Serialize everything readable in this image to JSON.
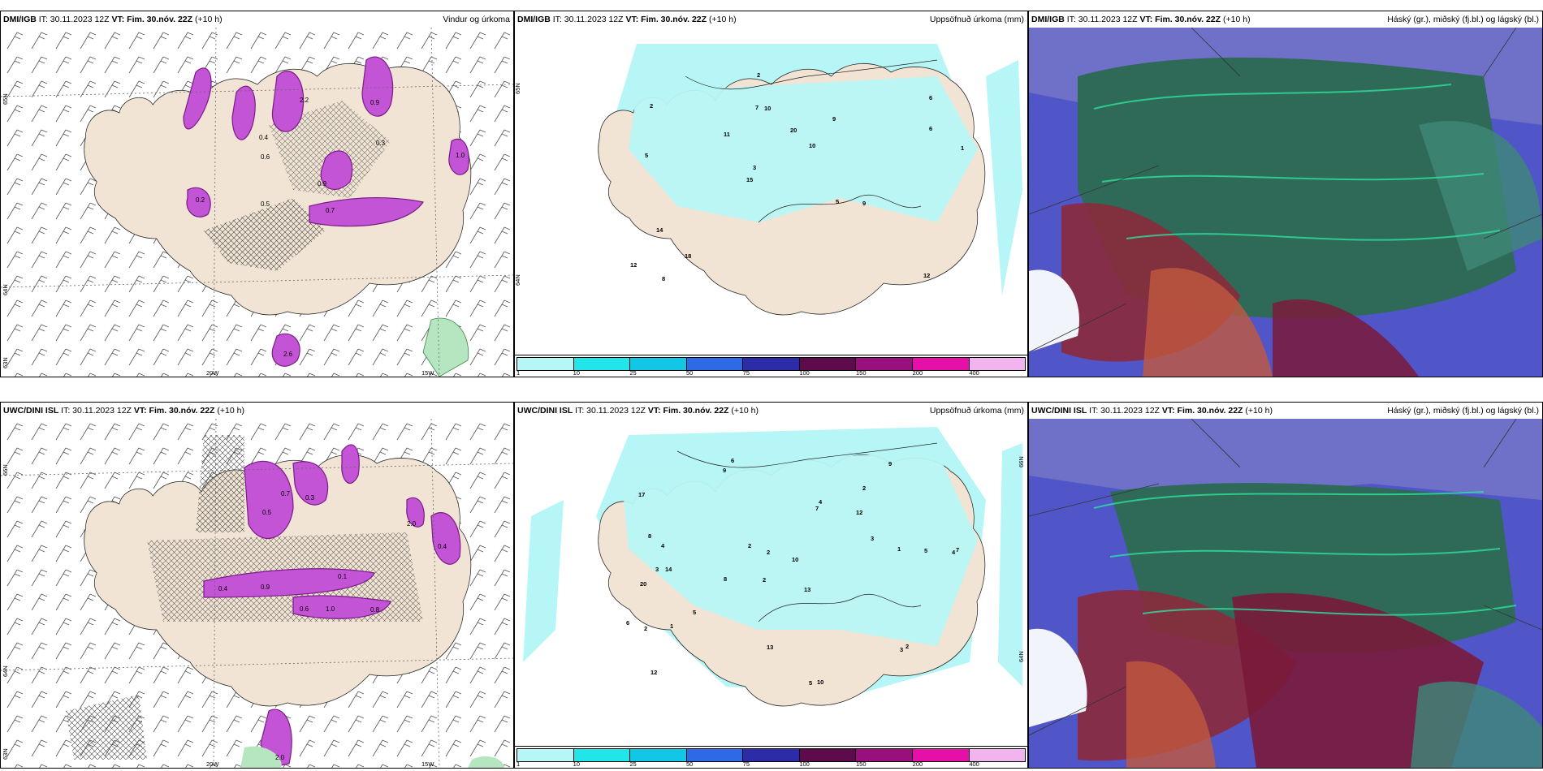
{
  "rows": [
    {
      "panels": [
        {
          "src": "DMI/IGB",
          "it": "IT: 30.11.2023 12Z",
          "vt": "VT: Fim. 30.nóv. 22Z",
          "lead": "(+10 h)",
          "title": "Vindur og úrkoma",
          "kind": "wind",
          "lat_labels": [
            "65N",
            "64N",
            "63N"
          ],
          "lon_labels": [
            "20W",
            "15W"
          ]
        },
        {
          "src": "DMI/IGB",
          "it": "IT: 30.11.2023 12Z",
          "vt": "VT: Fim. 30.nóv. 22Z",
          "lead": "(+10 h)",
          "title": "Uppsöfnuð úrkoma (mm)",
          "kind": "precip",
          "lat_labels": [
            "65N",
            "64N"
          ],
          "values": [
            "12",
            "5",
            "6",
            "15",
            "9",
            "8",
            "7",
            "20",
            "14",
            "11",
            "12",
            "18",
            "10",
            "10",
            "9",
            "2",
            "2",
            "1",
            "5",
            "6",
            "3"
          ]
        },
        {
          "src": "DMI/IGB",
          "it": "IT: 30.11.2023 12Z",
          "vt": "VT: Fim. 30.nóv. 22Z",
          "lead": "(+10 h)",
          "title": "Háský (gr.), miðský (fj.bl.) og lágský (bl.)",
          "kind": "cloud"
        }
      ]
    },
    {
      "panels": [
        {
          "src": "UWC/DINI ISL",
          "it": "IT: 30.11.2023 12Z",
          "vt": "VT: Fim. 30.nóv. 22Z",
          "lead": "(+10 h)",
          "title": "",
          "kind": "wind",
          "lat_labels": [
            "66N",
            "64N",
            "63N"
          ],
          "lon_labels": [
            "20W",
            "15W"
          ]
        },
        {
          "src": "UWC/DINI ISL",
          "it": "IT: 30.11.2023 12Z",
          "vt": "VT: Fim. 30.nóv. 22Z",
          "lead": "(+10 h)",
          "title": "Uppsöfnuð úrkoma (mm)",
          "kind": "precip",
          "lat_labels": [
            "66N",
            "64N"
          ],
          "values": [
            "6",
            "2",
            "4",
            "2",
            "13",
            "14",
            "17",
            "12",
            "20",
            "7",
            "10",
            "12",
            "9",
            "8",
            "5",
            "10",
            "13",
            "9",
            "3",
            "5",
            "4",
            "3",
            "7",
            "5",
            "6",
            "8",
            "2",
            "1",
            "2",
            "2",
            "3",
            "4",
            "1",
            "2"
          ]
        },
        {
          "src": "UWC/DINI ISL",
          "it": "IT: 30.11.2023 12Z",
          "vt": "VT: Fim. 30.nóv. 22Z",
          "lead": "(+10 h)",
          "title": "Háský (gr.), miðský (fj.bl.) og lágský (bl.)",
          "kind": "cloud"
        }
      ]
    }
  ],
  "colorbar": {
    "ticks": [
      "1",
      "10",
      "25",
      "50",
      "75",
      "100",
      "150",
      "200",
      "400"
    ],
    "colors": [
      "#b7f6f6",
      "#20e6ea",
      "#12c6e6",
      "#2f6ae6",
      "#2d2ca8",
      "#5e0b4e",
      "#9a0f7e",
      "#e60fa8",
      "#f2b4ee"
    ]
  },
  "wind_precip_labels": [
    "2.2",
    "0.9",
    "0.6",
    "0.7",
    "0.3",
    "0.4",
    "0.5",
    "2.6",
    "0.9",
    "1.0",
    "0.2"
  ],
  "wind_precip_labels_b": [
    "0.4",
    "0.9",
    "0.5",
    "0.6",
    "1.0",
    "0.7",
    "2.0",
    "0.3",
    "0.8",
    "2.0",
    "0.1",
    "0.4"
  ],
  "colors": {
    "land": "#f1e4d4",
    "precip": "#c454d6",
    "precip_dark": "#7a1c86",
    "green": "#b6e6bf",
    "cloud_blue": "#4e55c9",
    "cloud_green": "#2f6a58",
    "cloud_red": "#8b2a3c"
  }
}
